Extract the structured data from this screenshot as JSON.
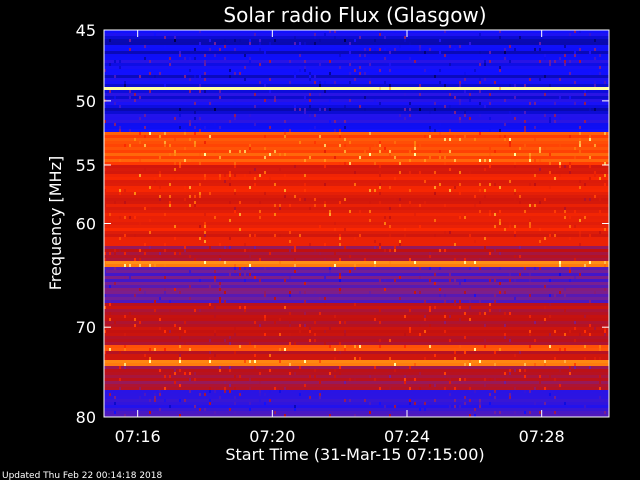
{
  "chart_data": {
    "type": "heatmap",
    "title": "Solar radio Flux (Glasgow)",
    "ylabel": "Frequency [MHz]",
    "xlabel": "Start Time (31-Mar-15 07:15:00)",
    "y_scale": "log",
    "ylim": [
      45,
      80
    ],
    "y_ticks": [
      {
        "value": 45,
        "label": "45"
      },
      {
        "value": 50,
        "label": "50"
      },
      {
        "value": 55,
        "label": "55"
      },
      {
        "value": 60,
        "label": "60"
      },
      {
        "value": 70,
        "label": "70"
      },
      {
        "value": 80,
        "label": "80"
      }
    ],
    "x_ticks": [
      {
        "value": "07:16",
        "label": "07:16"
      },
      {
        "value": "07:20",
        "label": "07:20"
      },
      {
        "value": "07:24",
        "label": "07:24"
      },
      {
        "value": "07:28",
        "label": "07:28"
      }
    ],
    "xlim": [
      "07:15:00",
      "07:30:00"
    ],
    "colorscale": [
      "#000050",
      "#1010ff",
      "#7a1f8f",
      "#c01010",
      "#ff2a00",
      "#ff8a10",
      "#ffffa0"
    ],
    "frequency_bands": [
      {
        "range": [
          45.0,
          49.0
        ],
        "level": 0.15
      },
      {
        "range": [
          49.0,
          49.2
        ],
        "level": 1.0
      },
      {
        "range": [
          49.2,
          52.4
        ],
        "level": 0.15
      },
      {
        "range": [
          52.4,
          55.0
        ],
        "level": 0.75
      },
      {
        "range": [
          55.0,
          62.0
        ],
        "level": 0.6
      },
      {
        "range": [
          62.0,
          63.5
        ],
        "level": 0.45
      },
      {
        "range": [
          63.5,
          63.9
        ],
        "level": 0.8
      },
      {
        "range": [
          63.9,
          67.5
        ],
        "level": 0.3
      },
      {
        "range": [
          67.5,
          72.0
        ],
        "level": 0.5
      },
      {
        "range": [
          72.0,
          72.6
        ],
        "level": 0.75
      },
      {
        "range": [
          72.6,
          73.5
        ],
        "level": 0.5
      },
      {
        "range": [
          73.5,
          74.1
        ],
        "level": 0.8
      },
      {
        "range": [
          74.1,
          77.0
        ],
        "level": 0.45
      },
      {
        "range": [
          77.0,
          80.0
        ],
        "level": 0.25
      }
    ],
    "footer": "Updated Thu Feb 22 00:14:18 2018"
  }
}
